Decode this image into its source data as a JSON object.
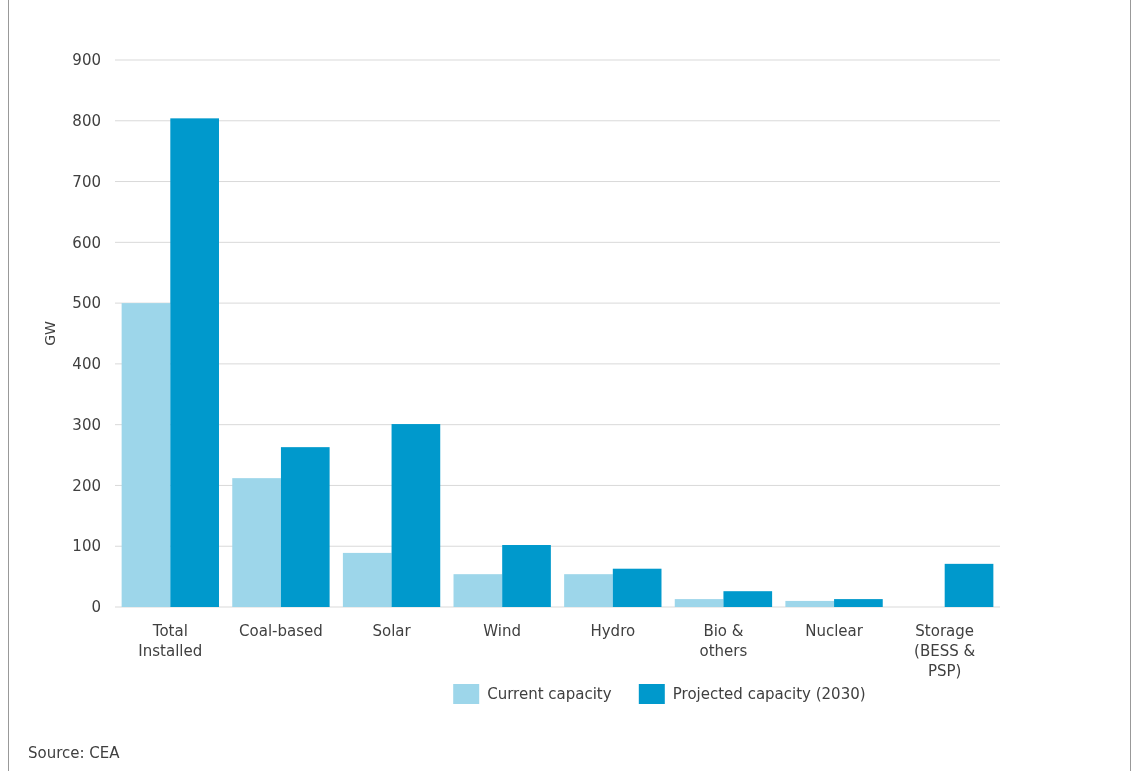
{
  "chart_data": {
    "type": "bar",
    "ylabel": "GW",
    "categories": [
      "Total Installed",
      "Coal-based",
      "Solar",
      "Wind",
      "Hydro",
      "Bio & others",
      "Nuclear",
      "Storage (BESS & PSP)"
    ],
    "series": [
      {
        "name": "Current capacity",
        "color": "#9dd6ea",
        "values": [
          500,
          212,
          89,
          54,
          54,
          13,
          10,
          null
        ]
      },
      {
        "name": "Projected capacity (2030)",
        "color": "#0099cc",
        "values": [
          804,
          263,
          301,
          102,
          63,
          26,
          13,
          71
        ]
      }
    ],
    "ylim": [
      0,
      900
    ],
    "yticks": [
      0,
      100,
      200,
      300,
      400,
      500,
      600,
      700,
      800,
      900
    ],
    "grid": "y",
    "legend": "bottom",
    "annotations": [
      "Source: CEA"
    ]
  }
}
